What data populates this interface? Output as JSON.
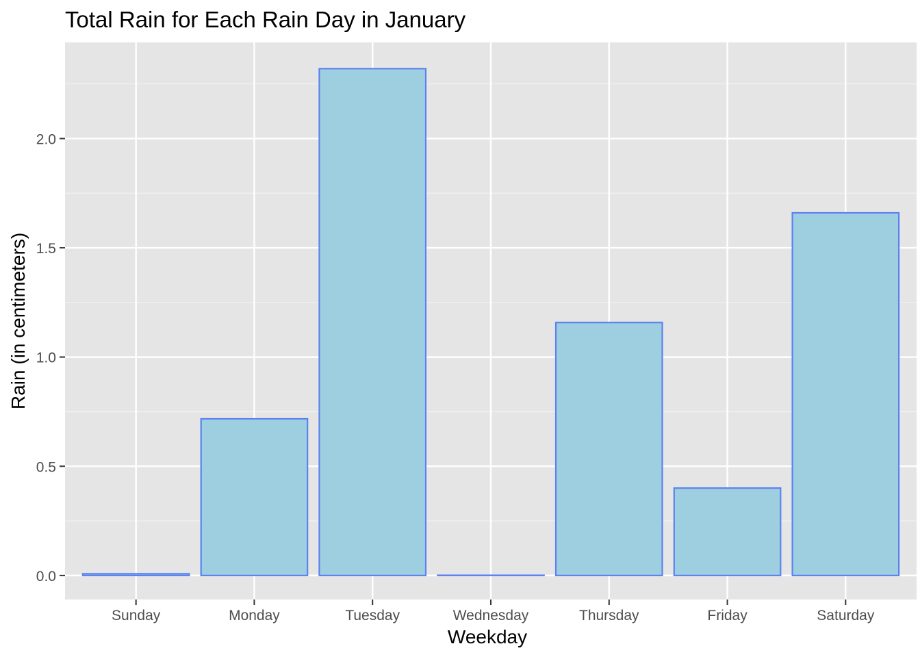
{
  "chart_data": {
    "type": "bar",
    "title": "Total Rain for Each Rain Day in January",
    "xlabel": "Weekday",
    "ylabel": "Rain (in centimeters)",
    "categories": [
      "Sunday",
      "Monday",
      "Tuesday",
      "Wednesday",
      "Thursday",
      "Friday",
      "Saturday"
    ],
    "values": [
      0.008,
      0.717,
      2.32,
      0.001,
      1.158,
      0.4,
      1.66
    ],
    "ylim": [
      -0.11,
      2.44
    ],
    "yticks": [
      0.0,
      0.5,
      1.0,
      1.5,
      2.0
    ],
    "ytick_labels": [
      "0.0",
      "0.5",
      "1.0",
      "1.5",
      "2.0"
    ],
    "grid": true,
    "legend": "none",
    "colors": {
      "panel_background": "#e5e5e5",
      "grid_major": "#ffffff",
      "grid_minor": "#f2f2f2",
      "bar_fill": "#9ecfe0",
      "bar_stroke": "#5b82f0",
      "tick_text": "#4d4d4d",
      "tick_mark": "#333333",
      "title_text": "#000000"
    }
  }
}
